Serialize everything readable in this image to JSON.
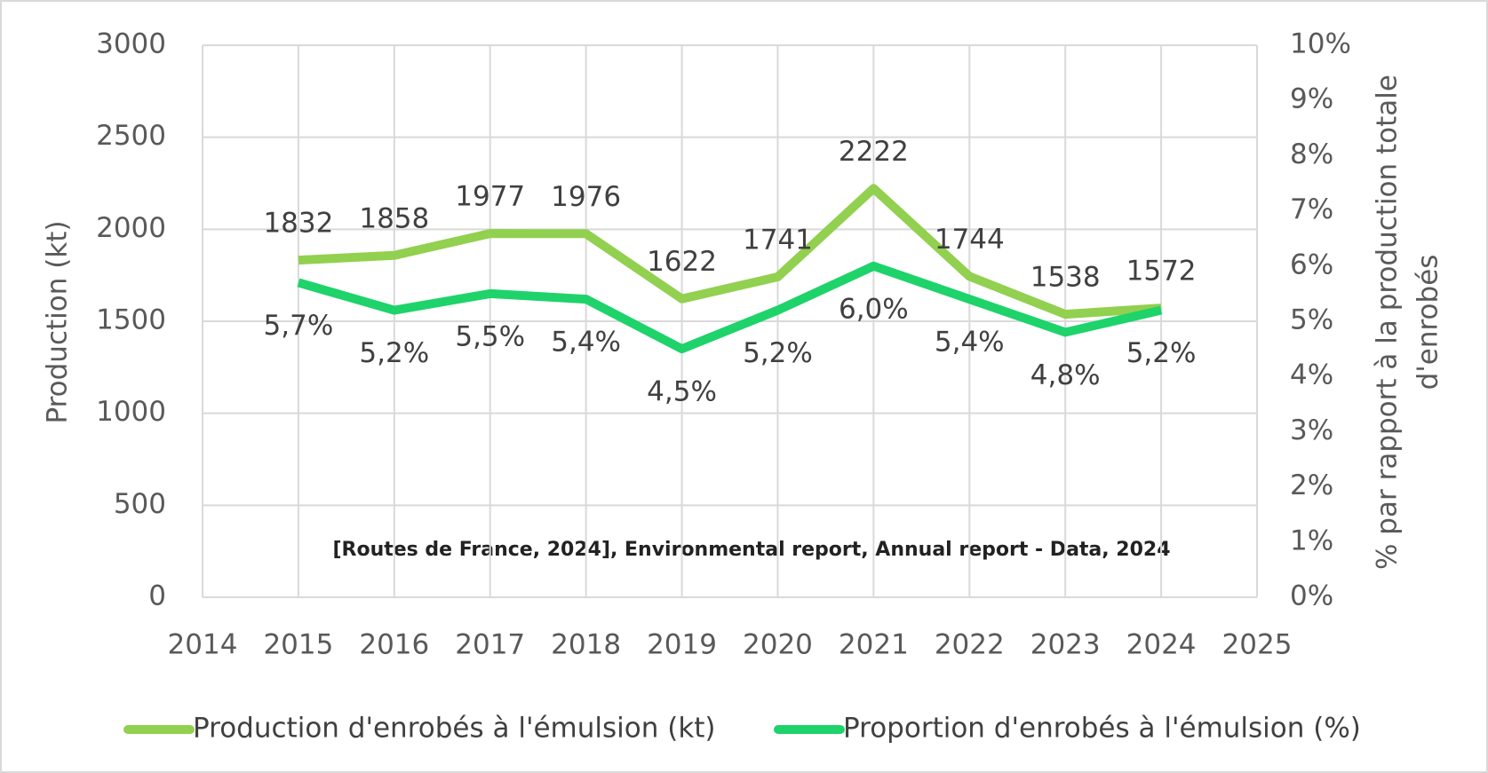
{
  "chart_data": {
    "type": "line",
    "y_label": "Production (kt)",
    "y2_label": [
      "% par rapport à la production totale",
      "d'enrobés"
    ],
    "annotation": "[Routes de France, 2024], Environmental report, Annual report - Data, 2024",
    "x": [
      2015,
      2016,
      2017,
      2018,
      2019,
      2020,
      2021,
      2022,
      2023,
      2024
    ],
    "series": [
      {
        "name": "Production d'enrobés à l'émulsion (kt)",
        "color": "#92d050",
        "axis": "y",
        "values": [
          1832,
          1858,
          1977,
          1976,
          1622,
          1741,
          2222,
          1744,
          1538,
          1572
        ]
      },
      {
        "name": "Proportion d'enrobés à l'émulsion (%)",
        "color": "#1ed36a",
        "axis": "y2",
        "values": [
          5.7,
          5.2,
          5.5,
          5.4,
          4.5,
          5.2,
          6.0,
          5.4,
          4.8,
          5.2
        ],
        "value_labels": [
          "5,7%",
          "5,2%",
          "5,5%",
          "5,4%",
          "4,5%",
          "5,2%",
          "6,0%",
          "5,4%",
          "4,8%",
          "5,2%"
        ]
      }
    ],
    "xlim": [
      2014,
      2025
    ],
    "xticks": [
      2014,
      2015,
      2016,
      2017,
      2018,
      2019,
      2020,
      2021,
      2022,
      2023,
      2024,
      2025
    ],
    "ylim": [
      0,
      3000
    ],
    "yticks": [
      0,
      500,
      1000,
      1500,
      2000,
      2500,
      3000
    ],
    "y2lim": [
      0,
      10
    ],
    "y2ticks": [
      {
        "value": 0,
        "label": "0%"
      },
      {
        "value": 1,
        "label": "1%"
      },
      {
        "value": 2,
        "label": "2%"
      },
      {
        "value": 3,
        "label": "3%"
      },
      {
        "value": 4,
        "label": "4%"
      },
      {
        "value": 5,
        "label": "5%"
      },
      {
        "value": 6,
        "label": "6%"
      },
      {
        "value": 7,
        "label": "7%"
      },
      {
        "value": 8,
        "label": "8%"
      },
      {
        "value": 9,
        "label": "9%"
      },
      {
        "value": 10,
        "label": "10%"
      }
    ],
    "grid": true,
    "legend": "bottom"
  }
}
